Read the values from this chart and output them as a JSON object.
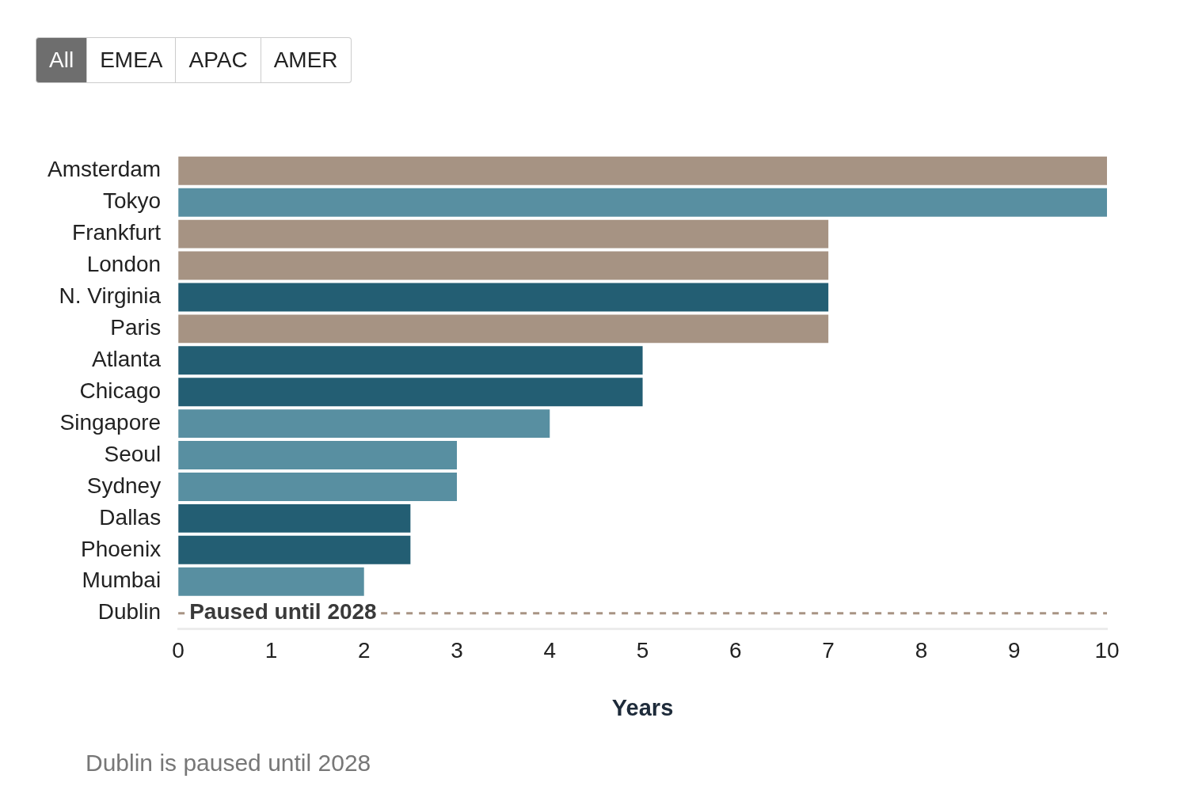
{
  "chart_data": {
    "type": "bar",
    "orientation": "horizontal",
    "xlabel": "Years",
    "categories": [
      "Amsterdam",
      "Tokyo",
      "Frankfurt",
      "London",
      "N. Virginia",
      "Paris",
      "Atlanta",
      "Chicago",
      "Singapore",
      "Seoul",
      "Sydney",
      "Dallas",
      "Phoenix",
      "Mumbai",
      "Dublin"
    ],
    "values": [
      10,
      10,
      7,
      7,
      7,
      7,
      5,
      5,
      4,
      3,
      3,
      2.5,
      2.5,
      2,
      null
    ],
    "colors": [
      "#a69383",
      "#588fa1",
      "#a69383",
      "#a69383",
      "#235e73",
      "#a69383",
      "#235e73",
      "#235e73",
      "#588fa1",
      "#588fa1",
      "#588fa1",
      "#235e73",
      "#235e73",
      "#588fa1",
      "#a69383"
    ],
    "xlim": [
      0,
      10
    ],
    "xticks": [
      0,
      1,
      2,
      3,
      4,
      5,
      6,
      7,
      8,
      9,
      10
    ],
    "grid": false,
    "legend": false,
    "ref_lines": [
      {
        "axis": "y",
        "value": "Dublin",
        "label": "Paused until 2028",
        "color": "#a89484",
        "line_style": "dashed"
      }
    ],
    "annotations": [
      "All",
      "EMEA",
      "APAC",
      "AMER",
      "Dublin is paused until 2028"
    ]
  }
}
